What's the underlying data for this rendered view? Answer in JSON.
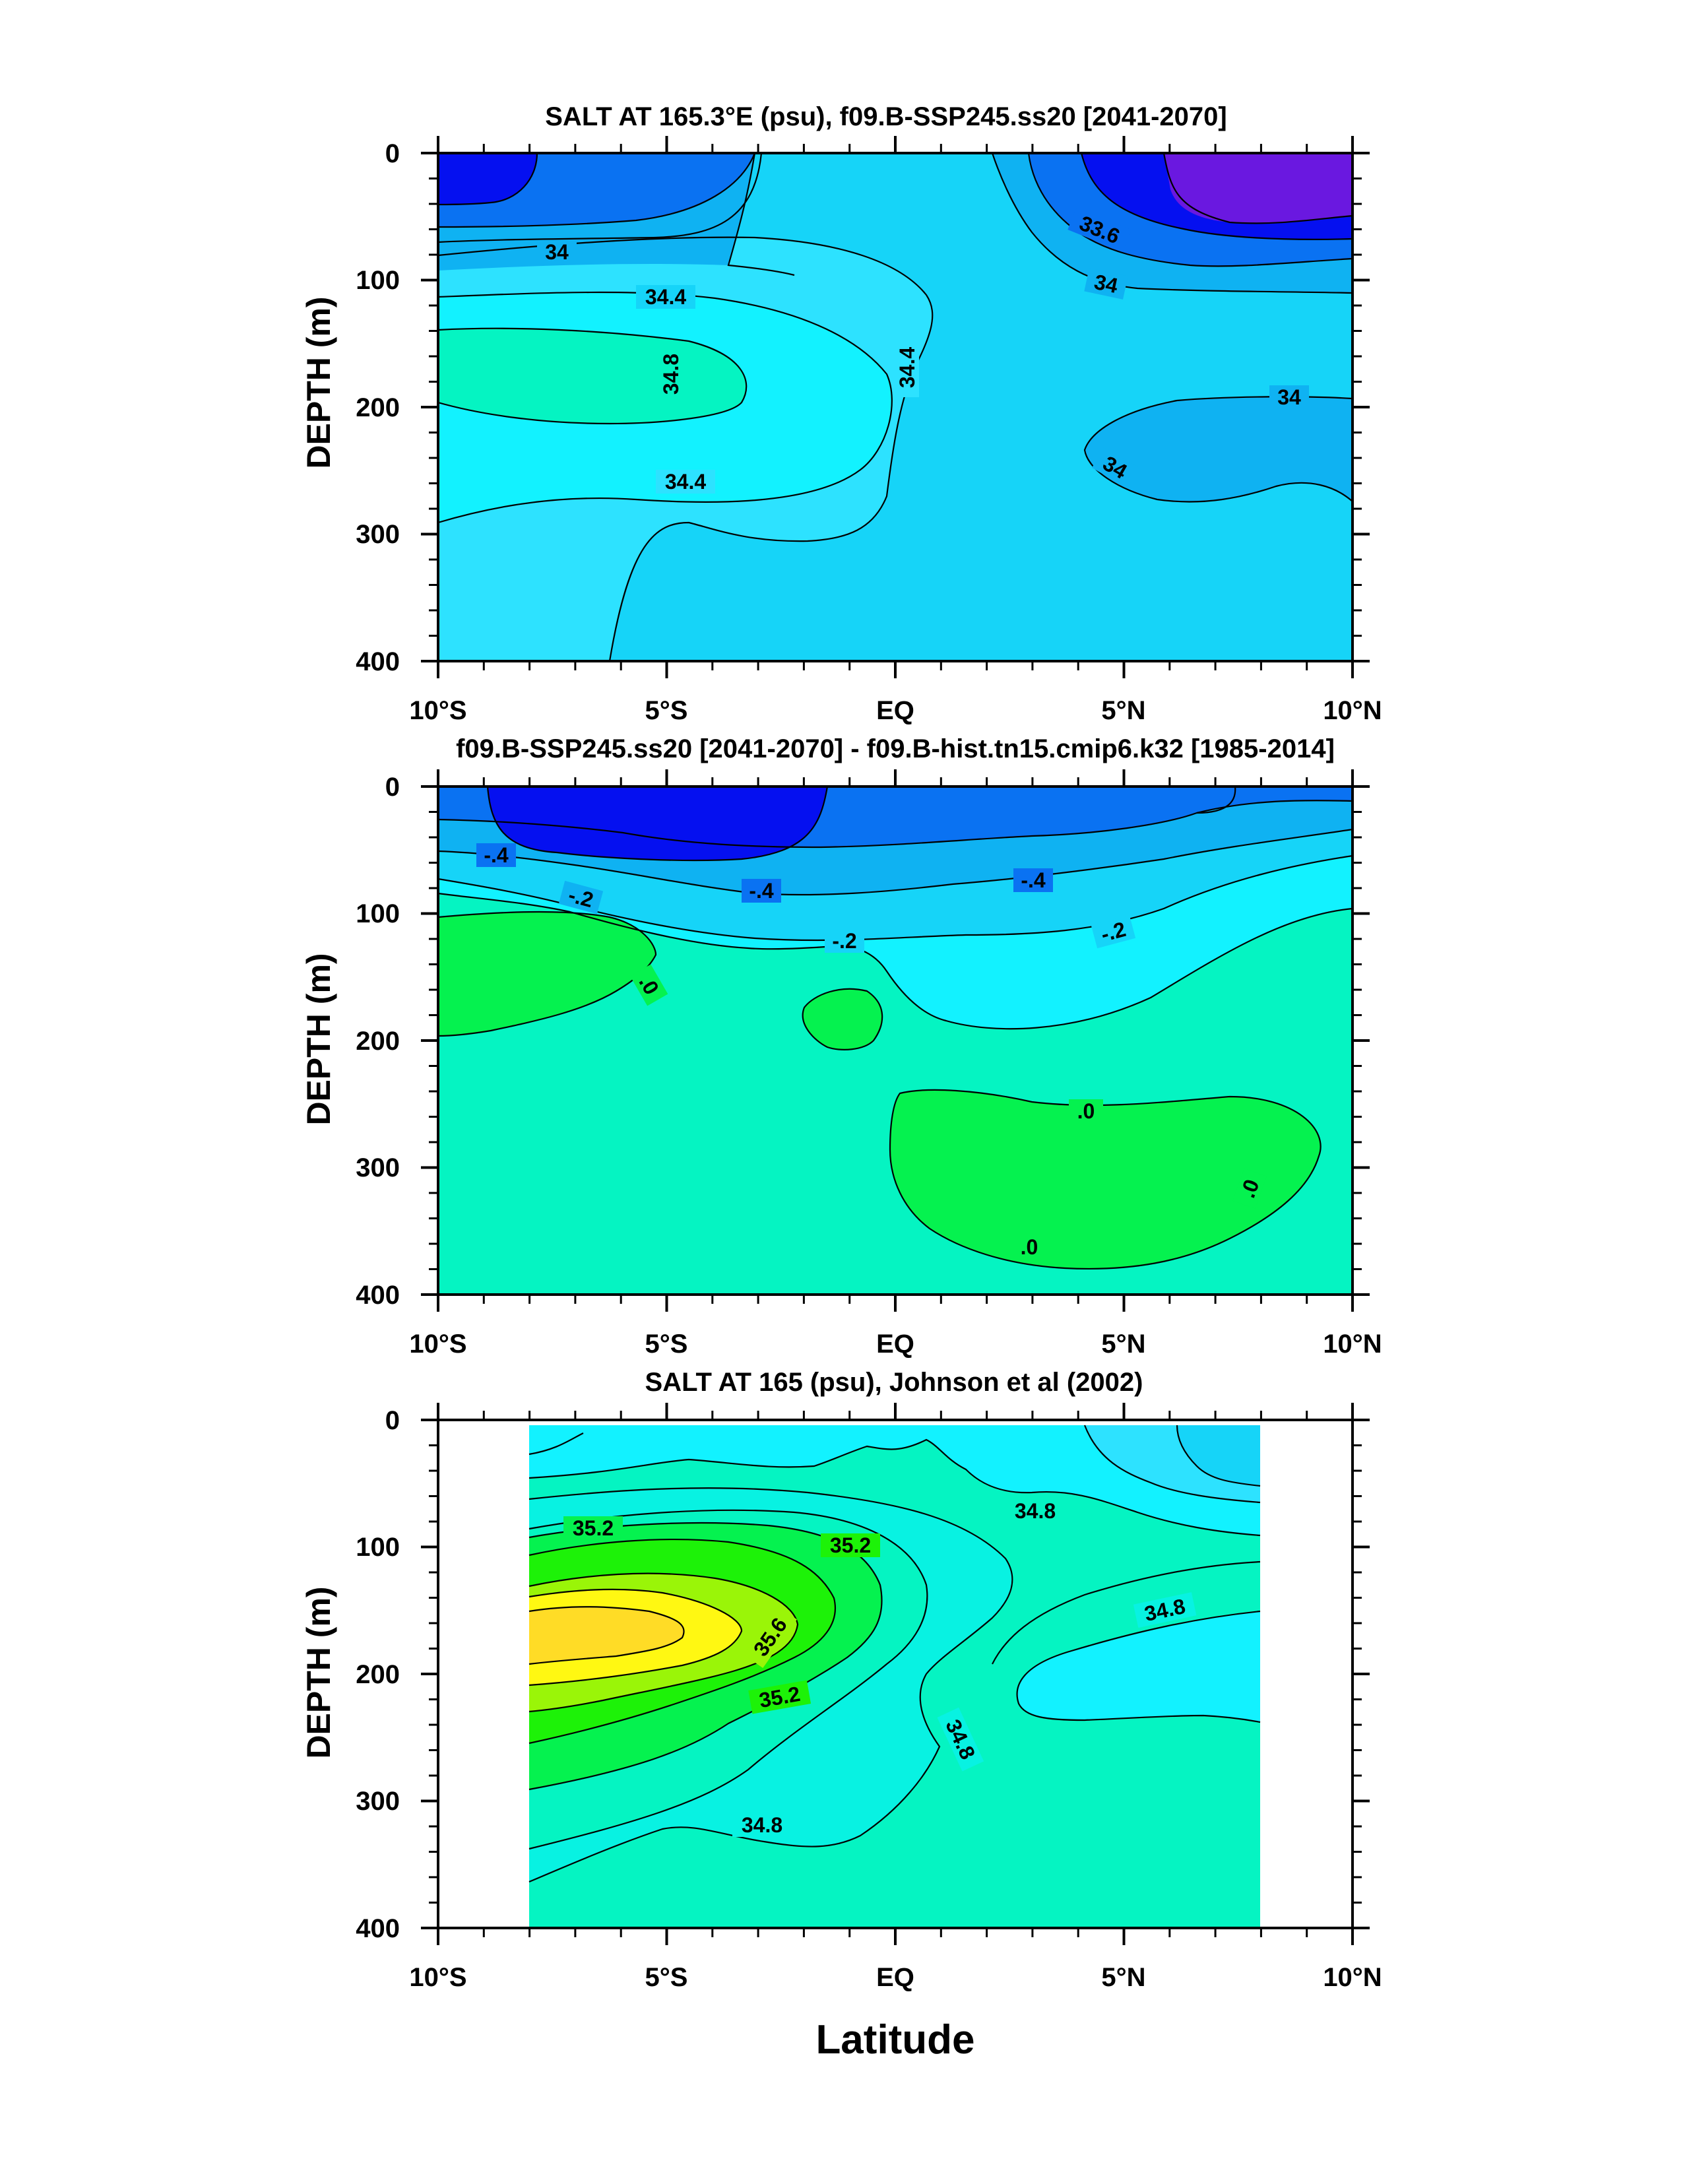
{
  "chart_data": [
    {
      "type": "contour",
      "title": "SALT AT 165.3°E (psu), f09.B-SSP245.ss20 [2041-2070]",
      "ylabel": "DEPTH (m)",
      "xlim": [
        -10,
        10
      ],
      "ylim": [
        400,
        0
      ],
      "x_ticks": [
        "10°S",
        "5°S",
        "EQ",
        "5°N",
        "10°N"
      ],
      "y_ticks": [
        "0",
        "100",
        "200",
        "300",
        "400"
      ],
      "contour_labels": [
        "34",
        "34.4",
        "34.8",
        "34.4",
        "34.4",
        "33.6",
        "34",
        "34",
        "34"
      ],
      "contour_levels": [
        33.2,
        33.4,
        33.6,
        33.8,
        34.0,
        34.2,
        34.4,
        34.6,
        34.8
      ]
    },
    {
      "type": "contour",
      "title": "f09.B-SSP245.ss20 [2041-2070] - f09.B-hist.tn15.cmip6.k32 [1985-2014]",
      "ylabel": "DEPTH (m)",
      "xlim": [
        -10,
        10
      ],
      "ylim": [
        400,
        0
      ],
      "x_ticks": [
        "10°S",
        "5°S",
        "EQ",
        "5°N",
        "10°N"
      ],
      "y_ticks": [
        "0",
        "100",
        "200",
        "300",
        "400"
      ],
      "contour_labels": [
        "-.4",
        "-.4",
        "-.4",
        "-.2",
        "-.2",
        "-.2",
        ".0",
        ".0",
        ".0",
        ".0"
      ],
      "contour_levels": [
        -0.6,
        -0.4,
        -0.2,
        -0.1,
        0.0
      ]
    },
    {
      "type": "contour",
      "title": "SALT AT 165 (psu), Johnson et al (2002)",
      "ylabel": "DEPTH (m)",
      "xlabel": "Latitude",
      "xlim": [
        -10,
        10
      ],
      "ylim": [
        400,
        0
      ],
      "data_extent_lat": [
        -8,
        8
      ],
      "x_ticks": [
        "10°S",
        "5°S",
        "EQ",
        "5°N",
        "10°N"
      ],
      "y_ticks": [
        "0",
        "100",
        "200",
        "300",
        "400"
      ],
      "contour_labels": [
        "35.2",
        "35.2",
        "35.6",
        "35.2",
        "34.8",
        "34.8",
        "34.8",
        "34.8"
      ],
      "contour_levels": [
        34.4,
        34.6,
        34.8,
        35.0,
        35.2,
        35.4,
        35.6
      ]
    }
  ],
  "colors": {
    "purple": "#6a18e0",
    "deep_blue": "#0510f0",
    "blue": "#0a72f2",
    "mid_blue": "#0fb2f2",
    "sky": "#16d4f8",
    "cyan_light": "#2de2ff",
    "cyan": "#12f2ff",
    "aqua": "#08f2e2",
    "sea_green": "#05f4c2",
    "green": "#05f24f",
    "bright_green": "#1df208",
    "lime": "#9af508",
    "yellow": "#fff812",
    "gold": "#ffdc26"
  }
}
